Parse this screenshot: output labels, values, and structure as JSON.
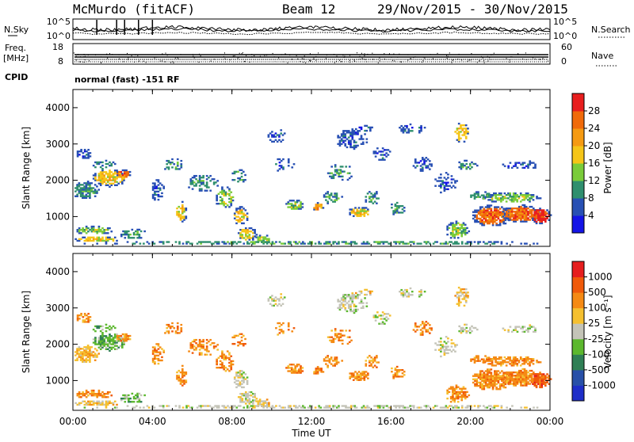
{
  "header": {
    "station": "McMurdo (fitACF)",
    "beam": "Beam 12",
    "date_range": "29/Nov/2015 - 30/Nov/2015"
  },
  "top_panel": {
    "left_label": "N.Sky",
    "right_label": "N.Search",
    "left_ticks": [
      "10^5",
      "10^0"
    ],
    "right_ticks": [
      "10^5",
      "10^0"
    ]
  },
  "freq_panel": {
    "left_label_1": "Freq.",
    "left_label_2": "[MHz]",
    "right_label": "Nave",
    "left_ticks": [
      "18",
      "8"
    ],
    "right_ticks": [
      "60",
      "0"
    ]
  },
  "cpid": {
    "label": "CPID",
    "value": "normal (fast) -151 RF"
  },
  "chart_data": [
    {
      "type": "heatmap",
      "parameter": "power",
      "ylabel": "Slant Range [km]",
      "xlabel": "",
      "ylim": [
        180,
        4500
      ],
      "y_ticks": [
        1000,
        2000,
        3000,
        4000
      ],
      "y_tick_labels": [
        "1000",
        "2000",
        "3000",
        "4000"
      ],
      "x_tick_labels": [
        "00:00",
        "04:00",
        "08:00",
        "12:00",
        "16:00",
        "20:00",
        "00:00"
      ],
      "x_ticks_hours": [
        0,
        4,
        8,
        12,
        16,
        20,
        24
      ],
      "colorbar": {
        "label": "Power [dB]",
        "tick_labels": [
          "4",
          "8",
          "12",
          "16",
          "20",
          "24",
          "28"
        ],
        "colors": [
          "#1414e6",
          "#2850b4",
          "#2f8f6e",
          "#7acc3a",
          "#f5c518",
          "#f59a12",
          "#f06a0a",
          "#e81e1e"
        ]
      }
    },
    {
      "type": "heatmap",
      "parameter": "velocity",
      "ylabel": "Slant Range [km]",
      "xlabel": "Time UT",
      "ylim": [
        180,
        4500
      ],
      "y_ticks": [
        1000,
        2000,
        3000,
        4000
      ],
      "y_tick_labels": [
        "1000",
        "2000",
        "3000",
        "4000"
      ],
      "x_tick_labels": [
        "00:00",
        "04:00",
        "08:00",
        "12:00",
        "16:00",
        "20:00",
        "00:00"
      ],
      "x_ticks_hours": [
        0,
        4,
        8,
        12,
        16,
        20,
        24
      ],
      "colorbar": {
        "label": "Velocity [m s⁻¹]",
        "tick_labels": [
          "1000",
          "500",
          "100",
          "25",
          "-25",
          "-100",
          "-500",
          "-1000"
        ],
        "colors": [
          "#1e2ec8",
          "#2850a8",
          "#2f7f55",
          "#5cb82e",
          "#c4c4b8",
          "#f5c030",
          "#f58a14",
          "#f05a0a",
          "#e61e1e"
        ]
      }
    }
  ]
}
